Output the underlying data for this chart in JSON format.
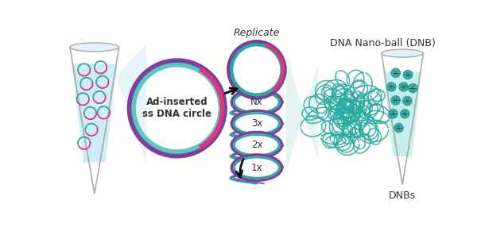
{
  "bg_color": "#ffffff",
  "tube1_label": "Ad-inserted\nss DNA circle",
  "tube2_label": "DNBs",
  "dnb_label": "DNA Nano-ball (DNB)",
  "replicate_label": "Replicate",
  "copy_labels": [
    "Nx",
    "3x",
    "2x",
    "1x"
  ],
  "teal": "#2aaba0",
  "teal_light": "#3dbdb2",
  "purple": "#7b3f9e",
  "pink": "#e0357a",
  "light_blue": "#c5e8f5",
  "light_teal": "#b8ebe8",
  "tube_gray": "#aaaaaa",
  "text_color": "#333333",
  "arrow_color": "#111111",
  "beam_color": "#c5e8f5",
  "beam_color2": "#aaddd8"
}
